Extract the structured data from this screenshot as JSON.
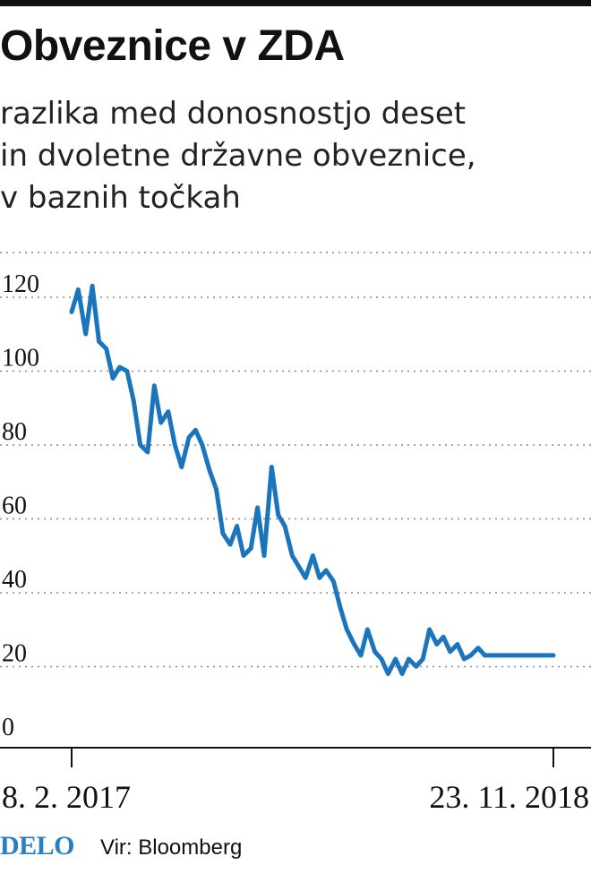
{
  "header": {
    "title": "Obveznice v ZDA",
    "subtitle_lines": [
      "razlika med donosnostjo deset",
      "in dvoletne državne obveznice,",
      "v baznih točkah"
    ]
  },
  "footer": {
    "logo": "DELO",
    "source": "Vir: Bloomberg"
  },
  "colors": {
    "line": "#1b75bc",
    "grid": "#888888",
    "logo": "#2a7fc4"
  },
  "chart_data": {
    "type": "line",
    "title": "Obveznice v ZDA",
    "subtitle": "razlika med donosnostjo deset in dvoletne državne obveznice, v baznih točkah",
    "xlabel": "",
    "ylabel": "",
    "ylim": [
      0,
      130
    ],
    "yticks": [
      0,
      20,
      40,
      60,
      80,
      100,
      120
    ],
    "grid": "horizontal dotted",
    "x_start_label": "8. 2. 2017",
    "x_end_label": "23. 11. 2018",
    "x_start": "2017-02-08",
    "x_end": "2018-11-23",
    "series": [
      {
        "x": [
          "2017-02-08",
          "2017-02-17",
          "2017-02-27",
          "2017-03-08",
          "2017-03-17",
          "2017-03-27",
          "2017-04-05",
          "2017-04-14",
          "2017-04-24",
          "2017-05-03",
          "2017-05-12",
          "2017-05-22",
          "2017-05-31",
          "2017-06-09",
          "2017-06-19",
          "2017-06-28",
          "2017-07-07",
          "2017-07-17",
          "2017-07-26",
          "2017-08-04",
          "2017-08-14",
          "2017-08-23",
          "2017-09-01",
          "2017-09-11",
          "2017-09-20",
          "2017-09-29",
          "2017-10-09",
          "2017-10-18",
          "2017-10-27",
          "2017-11-06",
          "2017-11-15",
          "2017-11-24",
          "2017-12-04",
          "2017-12-13",
          "2017-12-22",
          "2018-01-01",
          "2018-01-10",
          "2018-01-19",
          "2018-01-29",
          "2018-02-07",
          "2018-02-16",
          "2018-02-26",
          "2018-03-07",
          "2018-03-16",
          "2018-03-26",
          "2018-04-04",
          "2018-04-13",
          "2018-04-23",
          "2018-05-02",
          "2018-05-11",
          "2018-05-21",
          "2018-05-30",
          "2018-06-08",
          "2018-06-18",
          "2018-06-27",
          "2018-07-06",
          "2018-07-16",
          "2018-07-25",
          "2018-08-03",
          "2018-08-13",
          "2018-08-22",
          "2018-08-31",
          "2018-09-10",
          "2018-09-19",
          "2018-09-28",
          "2018-10-08",
          "2018-10-17",
          "2018-10-26",
          "2018-11-05",
          "2018-11-14",
          "2018-11-23"
        ],
        "values": [
          118,
          124,
          112,
          125,
          110,
          108,
          100,
          103,
          102,
          94,
          82,
          80,
          98,
          88,
          91,
          82,
          76,
          84,
          86,
          82,
          75,
          70,
          58,
          55,
          60,
          52,
          54,
          65,
          52,
          76,
          63,
          60,
          52,
          49,
          46,
          52,
          46,
          48,
          45,
          38,
          32,
          28,
          25,
          32,
          26,
          24,
          20,
          24,
          20,
          24,
          22,
          24,
          32,
          28,
          30,
          26,
          28,
          24,
          25,
          27,
          25,
          25,
          25,
          25,
          25,
          25,
          25,
          25,
          25,
          25,
          25
        ]
      }
    ]
  }
}
